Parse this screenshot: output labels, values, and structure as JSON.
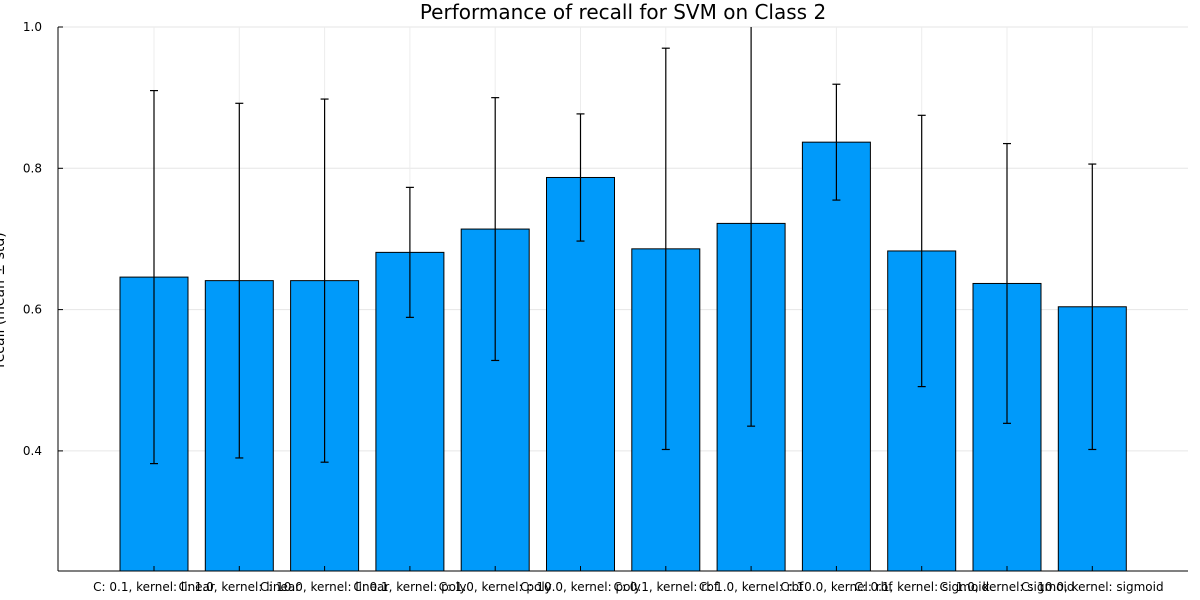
{
  "chart_data": {
    "type": "bar",
    "title": "Performance of recall for SVM on Class 2",
    "xlabel": "",
    "ylabel": "recall (mean ± std)",
    "ylim": [
      0.23,
      1.0
    ],
    "yticks": [
      0.4,
      0.6,
      0.8,
      1.0
    ],
    "grid": true,
    "legend": "none",
    "bar_color": "#009AFA",
    "categories": [
      "C: 0.1, kernel: linear",
      "C: 1.0, kernel: linear",
      "C: 10.0, kernel: linear",
      "C: 0.1, kernel: poly",
      "C: 1.0, kernel: poly",
      "C: 10.0, kernel: poly",
      "C: 0.1, kernel: rbf",
      "C: 1.0, kernel: rbf",
      "C: 10.0, kernel: rbf",
      "C: 0.1, kernel: sigmoid",
      "C: 1.0, kernel: sigmoid",
      "C: 10.0, kernel: sigmoid"
    ],
    "values": [
      0.646,
      0.641,
      0.641,
      0.681,
      0.714,
      0.787,
      0.686,
      0.722,
      0.837,
      0.683,
      0.637,
      0.604
    ],
    "errors": [
      0.264,
      0.251,
      0.257,
      0.092,
      0.186,
      0.09,
      0.284,
      0.287,
      0.082,
      0.192,
      0.198,
      0.202
    ]
  }
}
